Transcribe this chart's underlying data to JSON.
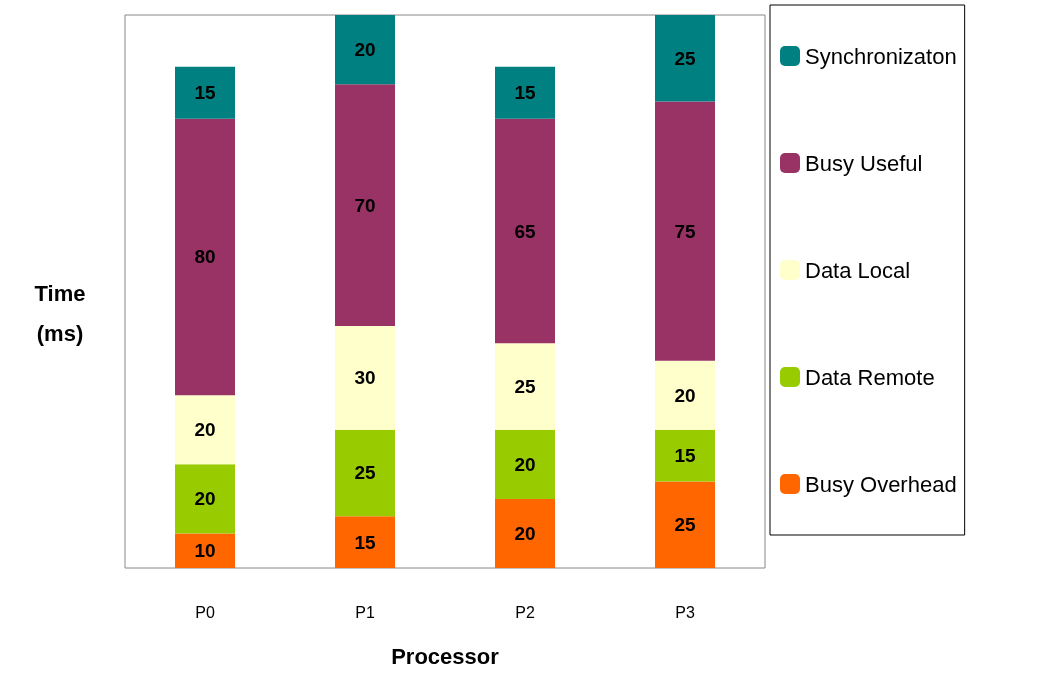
{
  "chart_data": {
    "type": "bar",
    "stacked": true,
    "data_labels": true,
    "xlabel": "Processor",
    "ylabel": "Time\n(ms)",
    "categories": [
      "P0",
      "P1",
      "P2",
      "P3"
    ],
    "series": [
      {
        "name": "Busy Overhead",
        "color": "#ff6600",
        "values": [
          10,
          15,
          20,
          25
        ]
      },
      {
        "name": "Data Remote",
        "color": "#99cc00",
        "values": [
          20,
          25,
          20,
          15
        ]
      },
      {
        "name": "Data Local",
        "color": "#ffffcc",
        "values": [
          20,
          30,
          25,
          20
        ]
      },
      {
        "name": "Busy Useful",
        "color": "#993366",
        "values": [
          80,
          70,
          65,
          75
        ]
      },
      {
        "name": "Synchronizaton",
        "color": "#008080",
        "values": [
          15,
          20,
          15,
          25
        ]
      }
    ],
    "legend": "right"
  }
}
